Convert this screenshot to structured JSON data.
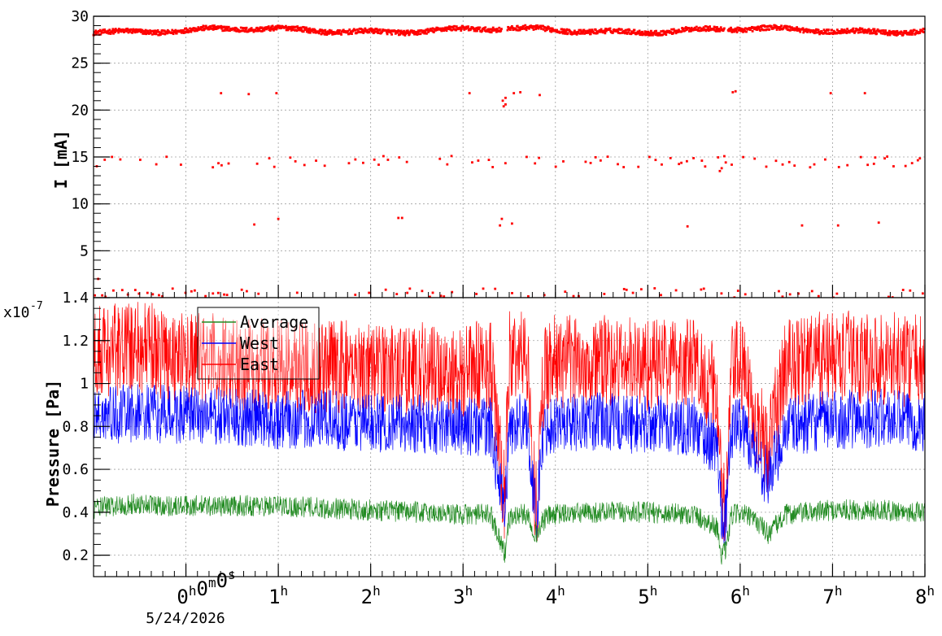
{
  "figure": {
    "colors": {
      "current": "#ff0000",
      "average": "#228b22",
      "west": "#0000ff",
      "east": "#ff0000",
      "grid": "#a0a0a0"
    }
  },
  "chart_data": [
    {
      "type": "scatter",
      "ylabel": "I [mA]",
      "xlim": [
        -1,
        8
      ],
      "ylim": [
        0,
        30
      ],
      "yticks": [
        5,
        10,
        15,
        20,
        25,
        30
      ],
      "grid": true,
      "series": [
        {
          "color": "#ff0000",
          "bands": [
            {
              "level": 28.5,
              "jitter": 0.5,
              "coverage": "continuous",
              "gaps": [
                [
                  3.42,
                  3.48
                ],
                [
                  5.83,
                  5.87
                ]
              ]
            },
            {
              "level": 14.5,
              "jitter": 0.6,
              "coverage": "sparse"
            },
            {
              "level": 21.8,
              "jitter": 0.1,
              "coverage": "rare"
            },
            {
              "level": 0.5,
              "jitter": 0.5,
              "coverage": "sparse"
            }
          ],
          "points": [
            [
              -0.95,
              2.0
            ],
            [
              0.38,
              21.8
            ],
            [
              0.68,
              21.7
            ],
            [
              0.98,
              21.8
            ],
            [
              3.07,
              21.8
            ],
            [
              3.46,
              21.3
            ],
            [
              3.46,
              20.6
            ],
            [
              3.55,
              21.8
            ],
            [
              3.62,
              21.9
            ],
            [
              3.83,
              21.6
            ],
            [
              5.92,
              21.9
            ],
            [
              5.95,
              22.0
            ],
            [
              6.98,
              21.8
            ],
            [
              7.35,
              21.8
            ],
            [
              0.74,
              7.8
            ],
            [
              1.0,
              8.4
            ],
            [
              2.3,
              8.5
            ],
            [
              2.34,
              8.5
            ],
            [
              3.4,
              7.7
            ],
            [
              3.42,
              8.4
            ],
            [
              3.53,
              7.9
            ],
            [
              5.43,
              7.6
            ],
            [
              6.67,
              7.7
            ],
            [
              7.06,
              7.7
            ],
            [
              7.5,
              8.0
            ],
            [
              3.43,
              21.0
            ],
            [
              3.44,
              20.4
            ],
            [
              5.78,
              13.5
            ],
            [
              5.8,
              13.8
            ]
          ]
        }
      ]
    },
    {
      "type": "line",
      "ylabel": "Pressure [Pa]",
      "exponent_label": "x10",
      "exponent": "-7",
      "xlim": [
        -1,
        8
      ],
      "ylim": [
        0.1,
        1.4
      ],
      "yticks": [
        0.2,
        0.4,
        0.6,
        0.8,
        1,
        1.2,
        1.4
      ],
      "ytick_labels": [
        "0.2",
        "0.4",
        "0.6",
        "0.8",
        "1",
        "1.2",
        "1.4"
      ],
      "x_ticks": [
        {
          "value": 0,
          "label": "0",
          "unit": "h",
          "extra": "0m0s"
        },
        {
          "value": 1,
          "label": "1",
          "unit": "h"
        },
        {
          "value": 2,
          "label": "2",
          "unit": "h"
        },
        {
          "value": 3,
          "label": "3",
          "unit": "h"
        },
        {
          "value": 4,
          "label": "4",
          "unit": "h"
        },
        {
          "value": 5,
          "label": "5",
          "unit": "h"
        },
        {
          "value": 6,
          "label": "6",
          "unit": "h"
        },
        {
          "value": 7,
          "label": "7",
          "unit": "h"
        },
        {
          "value": 8,
          "label": "8",
          "unit": "h"
        }
      ],
      "x_tick_labels_text": [
        "0h0m0s",
        "1h",
        "2h",
        "3h",
        "4h",
        "5h",
        "6h",
        "7h",
        "8h"
      ],
      "date_label": "5/24/2026",
      "grid": true,
      "legend": {
        "position": "top-left"
      },
      "series": [
        {
          "name": "Average",
          "color": "#228b22",
          "x": [
            -1,
            -0.5,
            -0.2,
            0,
            0.5,
            1,
            1.5,
            2,
            2.5,
            3,
            3.3,
            3.42,
            3.45,
            3.5,
            3.6,
            3.7,
            3.75,
            3.8,
            3.85,
            3.9,
            4,
            4.5,
            5,
            5.5,
            5.75,
            5.8,
            5.85,
            5.9,
            6,
            6.2,
            6.3,
            6.5,
            7,
            7.5,
            8
          ],
          "y": [
            0.42,
            0.44,
            0.43,
            0.43,
            0.43,
            0.43,
            0.42,
            0.41,
            0.4,
            0.39,
            0.39,
            0.25,
            0.2,
            0.37,
            0.39,
            0.39,
            0.33,
            0.3,
            0.34,
            0.38,
            0.39,
            0.4,
            0.4,
            0.39,
            0.33,
            0.2,
            0.22,
            0.38,
            0.4,
            0.35,
            0.3,
            0.39,
            0.41,
            0.41,
            0.4
          ],
          "spread": 0.05
        },
        {
          "name": "West",
          "color": "#0000ff",
          "x": [
            -1,
            -0.5,
            0,
            0.5,
            1,
            1.5,
            2,
            2.5,
            3,
            3.3,
            3.42,
            3.45,
            3.5,
            3.6,
            3.7,
            3.75,
            3.8,
            3.85,
            3.9,
            4,
            4.5,
            5,
            5.5,
            5.75,
            5.8,
            5.85,
            5.9,
            6,
            6.2,
            6.3,
            6.5,
            7,
            7.5,
            8
          ],
          "y": [
            0.85,
            0.86,
            0.85,
            0.84,
            0.83,
            0.83,
            0.82,
            0.81,
            0.8,
            0.8,
            0.45,
            0.4,
            0.78,
            0.82,
            0.83,
            0.5,
            0.4,
            0.7,
            0.8,
            0.82,
            0.82,
            0.81,
            0.8,
            0.7,
            0.4,
            0.38,
            0.78,
            0.82,
            0.65,
            0.55,
            0.8,
            0.83,
            0.84,
            0.82
          ],
          "spread": 0.14
        },
        {
          "name": "East",
          "color": "#ff0000",
          "x": [
            -1,
            -0.5,
            0,
            0.5,
            1,
            1.5,
            2,
            2.5,
            3,
            3.3,
            3.42,
            3.45,
            3.5,
            3.6,
            3.7,
            3.75,
            3.8,
            3.85,
            3.9,
            4,
            4.5,
            5,
            5.5,
            5.75,
            5.8,
            5.85,
            5.9,
            6,
            6.2,
            6.3,
            6.5,
            7,
            7.5,
            8
          ],
          "y": [
            1.15,
            1.17,
            1.12,
            1.1,
            1.08,
            1.08,
            1.08,
            1.07,
            1.05,
            1.1,
            0.55,
            0.45,
            1.12,
            1.13,
            1.14,
            0.6,
            0.42,
            0.9,
            1.1,
            1.1,
            1.1,
            1.09,
            1.1,
            0.95,
            0.45,
            0.42,
            1.05,
            1.1,
            0.8,
            0.7,
            1.1,
            1.12,
            1.12,
            1.1
          ],
          "spread": 0.22
        }
      ]
    }
  ]
}
